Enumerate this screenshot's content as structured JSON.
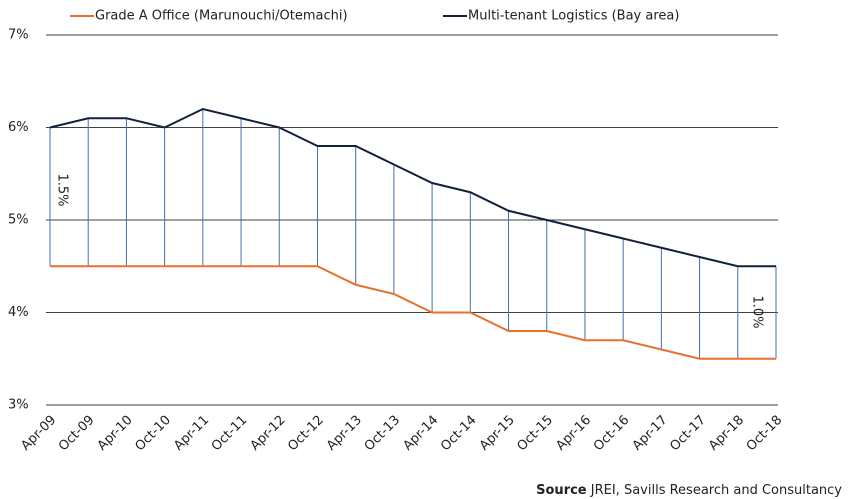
{
  "chart_data": {
    "type": "line",
    "categories": [
      "Apr-09",
      "Oct-09",
      "Apr-10",
      "Oct-10",
      "Apr-11",
      "Oct-11",
      "Apr-12",
      "Oct-12",
      "Apr-13",
      "Oct-13",
      "Apr-14",
      "Oct-14",
      "Apr-15",
      "Oct-15",
      "Apr-16",
      "Oct-16",
      "Apr-17",
      "Oct-17",
      "Apr-18",
      "Oct-18"
    ],
    "series": [
      {
        "name": "Grade A Office (Marunouchi/Otemachi)",
        "color": "#e8702a",
        "values": [
          4.5,
          4.5,
          4.5,
          4.5,
          4.5,
          4.5,
          4.5,
          4.5,
          4.3,
          4.2,
          4.0,
          4.0,
          3.8,
          3.8,
          3.7,
          3.7,
          3.6,
          3.5,
          3.5,
          3.5
        ]
      },
      {
        "name": "Multi-tenant Logistics (Bay area)",
        "color": "#14213d",
        "values": [
          6.0,
          6.1,
          6.1,
          6.0,
          6.2,
          6.1,
          6.0,
          5.8,
          5.8,
          5.6,
          5.4,
          5.3,
          5.1,
          5.0,
          4.9,
          4.8,
          4.7,
          4.6,
          4.5,
          4.5
        ]
      }
    ],
    "spread_color": "#3f6fb5",
    "annotations": [
      "1.5%",
      "1.0%"
    ],
    "source": {
      "bold": "Source",
      "text": "JREI, Savills Research and Consultancy"
    },
    "ylim": [
      3,
      7
    ],
    "yticks": [
      {
        "value": 3,
        "label": "3%"
      },
      {
        "value": 4,
        "label": "4%"
      },
      {
        "value": 5,
        "label": "5%"
      },
      {
        "value": 6,
        "label": "6%"
      },
      {
        "value": 7,
        "label": "7%"
      }
    ],
    "grid": true
  }
}
